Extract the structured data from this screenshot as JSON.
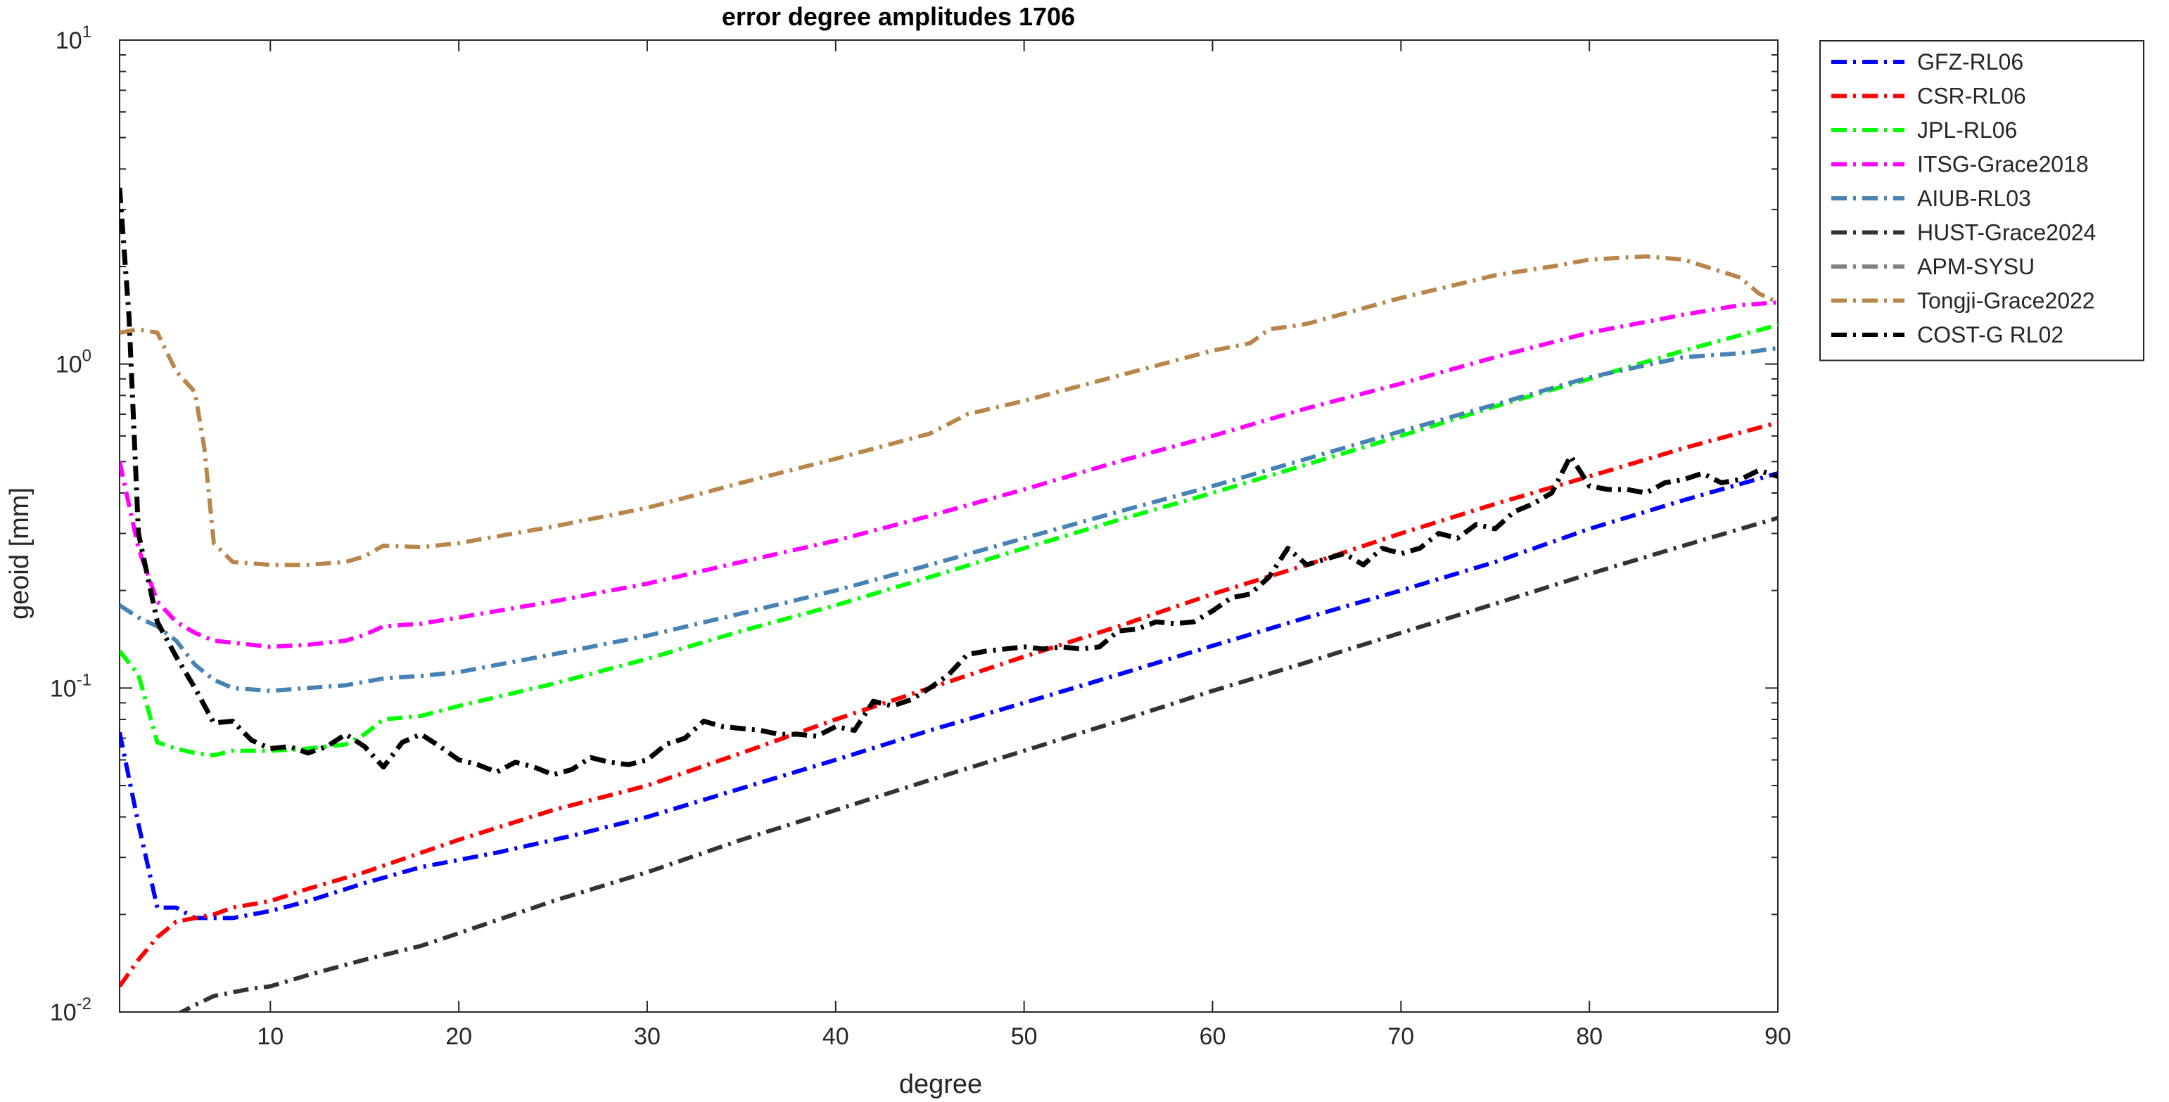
{
  "chart_data": {
    "type": "line",
    "title": "error degree amplitudes 1706",
    "xlabel": "degree",
    "ylabel": "geoid [mm]",
    "xlim": [
      2,
      90
    ],
    "ylim": [
      0.01,
      10
    ],
    "yscale": "log",
    "xticks": [
      10,
      20,
      30,
      40,
      50,
      60,
      70,
      80,
      90
    ],
    "yticks": [
      {
        "value": 0.01,
        "base": "10",
        "exp": "-2"
      },
      {
        "value": 0.1,
        "base": "10",
        "exp": "-1"
      },
      {
        "value": 1,
        "base": "10",
        "exp": "0"
      },
      {
        "value": 10,
        "base": "10",
        "exp": "1"
      }
    ],
    "grid": false,
    "legend_position": "outside-top-right",
    "series": [
      {
        "name": "GFZ-RL06",
        "color": "#0000ff",
        "x": [
          2,
          3,
          4,
          5,
          6,
          7,
          8,
          10,
          12,
          15,
          18,
          22,
          26,
          30,
          35,
          40,
          45,
          50,
          55,
          60,
          65,
          70,
          75,
          80,
          85,
          90
        ],
        "y": [
          0.073,
          0.038,
          0.021,
          0.021,
          0.0195,
          0.0195,
          0.0195,
          0.0205,
          0.022,
          0.025,
          0.028,
          0.031,
          0.035,
          0.04,
          0.049,
          0.06,
          0.074,
          0.09,
          0.11,
          0.135,
          0.165,
          0.2,
          0.245,
          0.31,
          0.38,
          0.46
        ]
      },
      {
        "name": "CSR-RL06",
        "color": "#ff0000",
        "x": [
          2,
          3,
          4,
          5,
          6,
          7,
          8,
          10,
          12,
          15,
          18,
          20,
          25,
          30,
          35,
          40,
          45,
          50,
          55,
          60,
          65,
          70,
          75,
          80,
          85,
          90
        ],
        "y": [
          0.012,
          0.0145,
          0.017,
          0.019,
          0.0195,
          0.02,
          0.021,
          0.022,
          0.024,
          0.027,
          0.031,
          0.034,
          0.042,
          0.05,
          0.063,
          0.08,
          0.1,
          0.125,
          0.155,
          0.195,
          0.24,
          0.3,
          0.37,
          0.45,
          0.55,
          0.66
        ]
      },
      {
        "name": "JPL-RL06",
        "color": "#00ff00",
        "x": [
          2,
          3,
          4,
          5,
          6,
          7,
          8,
          10,
          12,
          14,
          15,
          16,
          18,
          20,
          25,
          30,
          35,
          40,
          45,
          50,
          55,
          60,
          65,
          70,
          75,
          80,
          85,
          90
        ],
        "y": [
          0.13,
          0.11,
          0.068,
          0.065,
          0.063,
          0.062,
          0.064,
          0.064,
          0.065,
          0.067,
          0.072,
          0.08,
          0.082,
          0.088,
          0.103,
          0.123,
          0.15,
          0.18,
          0.22,
          0.27,
          0.33,
          0.4,
          0.49,
          0.6,
          0.74,
          0.9,
          1.1,
          1.32
        ]
      },
      {
        "name": "ITSG-Grace2018",
        "color": "#ff00ff",
        "x": [
          2,
          3,
          4,
          5,
          6,
          7,
          8,
          10,
          12,
          14,
          15,
          16,
          18,
          20,
          25,
          30,
          35,
          40,
          45,
          50,
          55,
          60,
          65,
          70,
          75,
          80,
          85,
          88,
          90
        ],
        "y": [
          0.5,
          0.27,
          0.185,
          0.16,
          0.148,
          0.14,
          0.138,
          0.134,
          0.136,
          0.14,
          0.146,
          0.155,
          0.158,
          0.165,
          0.185,
          0.21,
          0.245,
          0.285,
          0.34,
          0.41,
          0.5,
          0.6,
          0.73,
          0.87,
          1.05,
          1.25,
          1.42,
          1.52,
          1.55
        ]
      },
      {
        "name": "AIUB-RL03",
        "color": "#4682b4",
        "x": [
          2,
          3,
          4,
          5,
          6,
          7,
          8,
          10,
          12,
          14,
          16,
          18,
          20,
          25,
          30,
          35,
          40,
          45,
          50,
          55,
          60,
          65,
          70,
          75,
          80,
          85,
          88,
          90
        ],
        "y": [
          0.18,
          0.165,
          0.155,
          0.14,
          0.118,
          0.106,
          0.1,
          0.098,
          0.1,
          0.102,
          0.107,
          0.109,
          0.112,
          0.127,
          0.145,
          0.17,
          0.2,
          0.24,
          0.29,
          0.35,
          0.42,
          0.51,
          0.62,
          0.75,
          0.91,
          1.05,
          1.08,
          1.12
        ]
      },
      {
        "name": "HUST-Grace2024",
        "color": "#333333",
        "x": [
          5,
          6,
          7,
          8,
          9,
          10,
          12,
          15,
          18,
          20,
          25,
          30,
          35,
          40,
          45,
          50,
          55,
          60,
          65,
          70,
          75,
          80,
          85,
          90
        ],
        "y": [
          0.0098,
          0.0105,
          0.0112,
          0.0115,
          0.0118,
          0.012,
          0.013,
          0.0145,
          0.016,
          0.0175,
          0.022,
          0.027,
          0.034,
          0.042,
          0.052,
          0.064,
          0.079,
          0.098,
          0.12,
          0.148,
          0.182,
          0.225,
          0.275,
          0.335
        ]
      },
      {
        "name": "APM-SYSU",
        "color": "#808080",
        "x": [],
        "y": []
      },
      {
        "name": "Tongji-Grace2022",
        "color": "#b8864b",
        "x": [
          2,
          3,
          4,
          5,
          6,
          6.5,
          7,
          8,
          10,
          12,
          14,
          15,
          16,
          18,
          20,
          25,
          30,
          35,
          40,
          45,
          47,
          50,
          55,
          60,
          62,
          63,
          65,
          70,
          75,
          78,
          80,
          83,
          85,
          88,
          89,
          90
        ],
        "y": [
          1.25,
          1.28,
          1.25,
          0.95,
          0.82,
          0.55,
          0.28,
          0.245,
          0.24,
          0.24,
          0.245,
          0.255,
          0.275,
          0.272,
          0.28,
          0.315,
          0.36,
          0.43,
          0.51,
          0.61,
          0.7,
          0.77,
          0.92,
          1.1,
          1.16,
          1.28,
          1.33,
          1.6,
          1.88,
          2.0,
          2.1,
          2.15,
          2.1,
          1.85,
          1.65,
          1.55
        ]
      },
      {
        "name": "COST-G RL02",
        "color": "#000000",
        "x": [
          2,
          2.5,
          3,
          4,
          5,
          6,
          7,
          8,
          9,
          10,
          11,
          12,
          13,
          14,
          15,
          16,
          17,
          18,
          19,
          20,
          21,
          22,
          23,
          24,
          25,
          26,
          27,
          28,
          29,
          30,
          31,
          32,
          33,
          34,
          35,
          36,
          37,
          38,
          39,
          40,
          41,
          42,
          43,
          44,
          45,
          46,
          47,
          48,
          49,
          50,
          51,
          52,
          53,
          54,
          55,
          56,
          57,
          58,
          59,
          60,
          61,
          62,
          63,
          64,
          65,
          66,
          67,
          68,
          69,
          70,
          71,
          72,
          73,
          74,
          75,
          76,
          77,
          78,
          79,
          80,
          81,
          82,
          83,
          84,
          85,
          86,
          87,
          88,
          89,
          90
        ],
        "y": [
          3.5,
          1.4,
          0.3,
          0.16,
          0.125,
          0.1,
          0.078,
          0.079,
          0.069,
          0.065,
          0.066,
          0.063,
          0.066,
          0.072,
          0.066,
          0.057,
          0.068,
          0.072,
          0.066,
          0.06,
          0.058,
          0.055,
          0.059,
          0.057,
          0.054,
          0.056,
          0.061,
          0.059,
          0.058,
          0.06,
          0.067,
          0.07,
          0.079,
          0.076,
          0.075,
          0.074,
          0.072,
          0.072,
          0.071,
          0.076,
          0.074,
          0.091,
          0.088,
          0.092,
          0.1,
          0.11,
          0.127,
          0.13,
          0.132,
          0.134,
          0.132,
          0.134,
          0.132,
          0.134,
          0.15,
          0.152,
          0.16,
          0.158,
          0.16,
          0.173,
          0.19,
          0.195,
          0.22,
          0.27,
          0.24,
          0.25,
          0.26,
          0.24,
          0.27,
          0.26,
          0.27,
          0.3,
          0.29,
          0.32,
          0.31,
          0.35,
          0.37,
          0.4,
          0.52,
          0.42,
          0.41,
          0.41,
          0.4,
          0.43,
          0.44,
          0.46,
          0.43,
          0.44,
          0.47,
          0.45
        ]
      }
    ]
  }
}
